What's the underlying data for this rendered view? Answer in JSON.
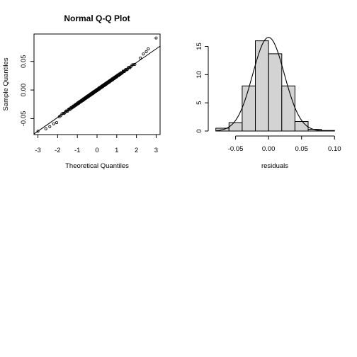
{
  "chart_data": [
    {
      "type": "scatter",
      "title": "Normal Q-Q Plot",
      "xlabel": "Theoretical Quantiles",
      "ylabel": "Sample Quantiles",
      "xlim": [
        -3.2,
        3.2
      ],
      "ylim": [
        -0.078,
        0.098
      ],
      "x_ticks": [
        -3,
        -2,
        -1,
        0,
        1,
        2,
        3
      ],
      "x_tick_labels": [
        "-3",
        "-2",
        "-1",
        "0",
        "1",
        "2",
        "3"
      ],
      "y_ticks": [
        -0.05,
        0.0,
        0.05
      ],
      "y_tick_labels": [
        "-0.05",
        "0.00",
        "0.05"
      ],
      "grid": false,
      "reference_line": {
        "intercept": 0.0,
        "slope": 0.024
      },
      "n_points": 200,
      "mean": 0.0,
      "sd": 0.024,
      "lower_tail": [
        [
          -3.0,
          -0.072
        ],
        [
          -2.6,
          -0.068
        ],
        [
          -2.4,
          -0.064
        ],
        [
          -2.2,
          -0.059
        ],
        [
          -2.05,
          -0.057
        ]
      ],
      "upper_tail": [
        [
          2.2,
          0.056
        ],
        [
          2.35,
          0.063
        ],
        [
          2.5,
          0.067
        ],
        [
          2.6,
          0.072
        ],
        [
          3.0,
          0.091
        ]
      ]
    },
    {
      "type": "bar",
      "subtype": "histogram",
      "title": "",
      "xlabel": "residuals",
      "ylabel": "",
      "xlim": [
        -0.085,
        0.104
      ],
      "ylim": [
        0,
        17.2
      ],
      "x_ticks": [
        -0.05,
        0.0,
        0.05,
        0.1
      ],
      "x_tick_labels": [
        "-0.05",
        "0.00",
        "0.05",
        "0.10"
      ],
      "y_ticks": [
        0,
        5,
        10,
        15
      ],
      "y_tick_labels": [
        "0",
        "5",
        "10",
        "15"
      ],
      "bin_edges": [
        -0.08,
        -0.06,
        -0.04,
        -0.02,
        0.0,
        0.02,
        0.04,
        0.06,
        0.08,
        0.1
      ],
      "values": [
        0.5,
        1.5,
        8,
        16,
        13.7,
        8,
        1.7,
        0.3,
        0.1
      ],
      "density_curve": {
        "mean": 0.0,
        "sd": 0.024,
        "peak": 16.6
      },
      "bar_fill": "#d3d3d3",
      "grid": false
    }
  ]
}
